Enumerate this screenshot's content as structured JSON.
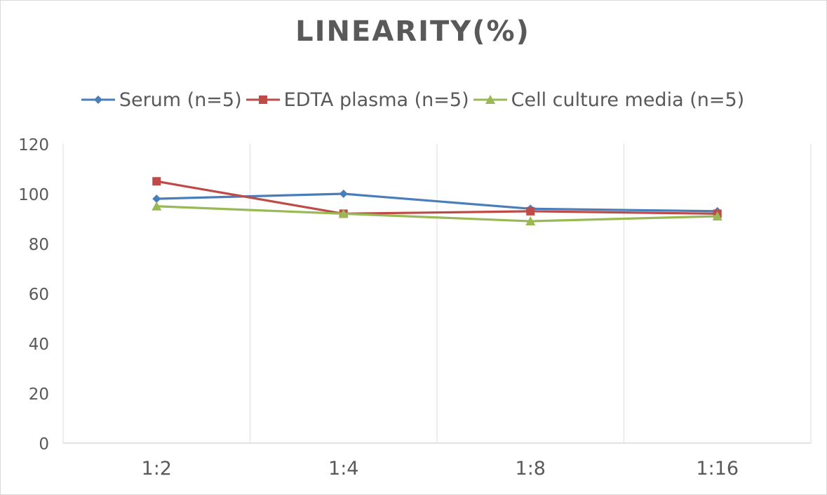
{
  "chart_data": {
    "type": "line",
    "title": "LINEARITY(%)",
    "xlabel": "",
    "ylabel": "",
    "categories": [
      "1:2",
      "1:4",
      "1:8",
      "1:16"
    ],
    "ylim": [
      0,
      120
    ],
    "yticks": [
      "0",
      "20",
      "40",
      "60",
      "80",
      "100",
      "120"
    ],
    "grid": "vertical",
    "legend_position": "top",
    "series": [
      {
        "name": "Serum (n=5)",
        "values": [
          98,
          100,
          94,
          93
        ],
        "color": "#4a7ebb",
        "marker": "diamond"
      },
      {
        "name": "EDTA plasma (n=5)",
        "values": [
          105,
          92,
          93,
          92
        ],
        "color": "#be4b48",
        "marker": "square"
      },
      {
        "name": "Cell culture media (n=5)",
        "values": [
          95,
          92,
          89,
          91
        ],
        "color": "#98b954",
        "marker": "triangle"
      }
    ]
  }
}
